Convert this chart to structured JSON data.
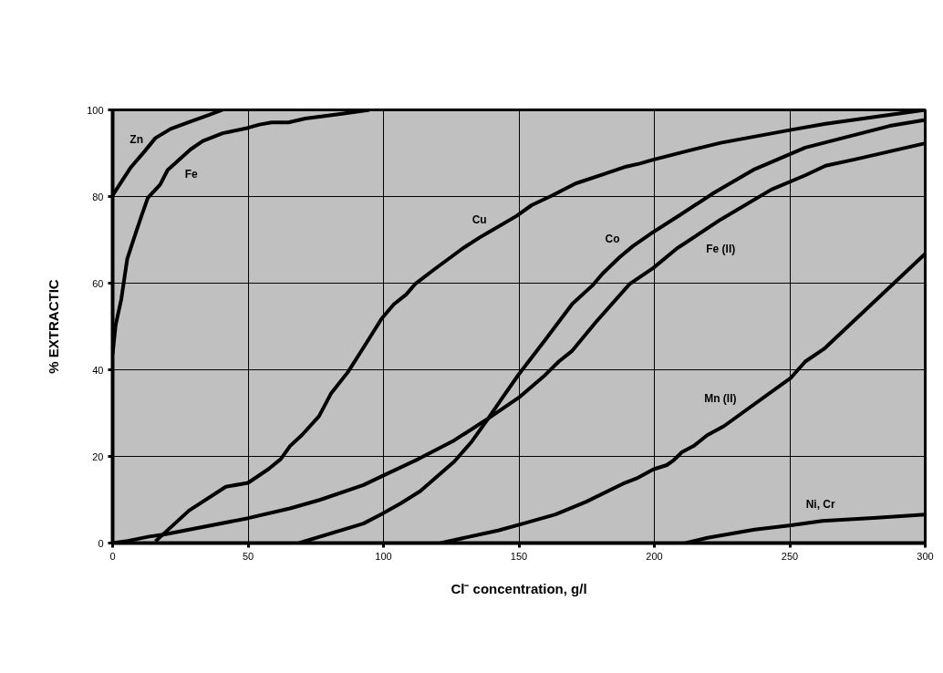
{
  "chart_data": {
    "type": "line",
    "xlabel": "Cl⁻ concentration, g/l",
    "ylabel": "% EXTRACTIC",
    "xlim": [
      0,
      300
    ],
    "ylim": [
      0,
      100
    ],
    "xticks": [
      0,
      50,
      100,
      150,
      200,
      250,
      300
    ],
    "yticks": [
      0,
      20,
      40,
      60,
      80,
      100
    ],
    "grid": true,
    "marker": "none",
    "line_style": "solid",
    "series": [
      {
        "name": "Zn",
        "color": "#000000",
        "x": [
          0,
          6.8,
          11.9,
          15.8,
          21.4,
          28.2,
          35,
          40.6
        ],
        "values": [
          80.3,
          86.8,
          90.5,
          93.5,
          95.6,
          97.2,
          98.7,
          100
        ]
      },
      {
        "name": "Fe",
        "color": "#000000",
        "x": [
          0,
          1.1,
          3.2,
          5.4,
          7.9,
          10.7,
          13,
          17.5,
          20.3,
          28.8,
          33.3,
          40.6,
          49.7,
          54.2,
          58.7,
          64.9,
          71.1,
          84.7,
          94.8
        ],
        "values": [
          43.6,
          50.3,
          56.3,
          65.6,
          70.4,
          75.6,
          79.7,
          82.7,
          86.1,
          90.9,
          92.8,
          94.6,
          95.8,
          96.6,
          97.1,
          97.1,
          98,
          99.1,
          100
        ]
      },
      {
        "name": "Cu",
        "color": "#000000",
        "x": [
          15.8,
          28.2,
          41.8,
          50,
          57.6,
          62.1,
          65.5,
          70,
          76.2,
          80.7,
          86.9,
          92.6,
          99.3,
          103.8,
          108.4,
          111.7,
          118.6,
          129.2,
          135.4,
          149.1,
          154.7,
          162.2,
          170.9,
          180.9,
          189.6,
          194.6,
          199.6,
          212.1,
          224.5,
          250.5,
          263.2,
          300
        ],
        "values": [
          0.4,
          7.5,
          13,
          13.9,
          17.1,
          19.4,
          22.4,
          25,
          29.3,
          34.6,
          39.5,
          45.1,
          51.8,
          55.1,
          57.4,
          59.8,
          63.1,
          68,
          70.5,
          75.5,
          78,
          80.2,
          83,
          85.1,
          86.9,
          87.6,
          88.5,
          90.5,
          92.4,
          95.4,
          96.8,
          100
        ]
      },
      {
        "name": "Co",
        "color": "#000000",
        "x": [
          68.8,
          92.6,
          99.3,
          106.5,
          113.6,
          126.1,
          132.3,
          138.5,
          143.5,
          150,
          159.7,
          169.7,
          177.2,
          180.9,
          187.2,
          192.2,
          199.6,
          209.6,
          222.1,
          237,
          255.7,
          286.9,
          300
        ],
        "values": [
          0,
          4.5,
          6.7,
          9.2,
          12,
          18.8,
          23.2,
          28.6,
          33.2,
          39,
          46.9,
          55.2,
          59.5,
          62.2,
          66,
          68.6,
          71.8,
          75.8,
          80.9,
          86.3,
          91.3,
          96.3,
          97.7
        ]
      },
      {
        "name": "Fe (II)",
        "color": "#000000",
        "x": [
          0,
          5.6,
          13.5,
          19.2,
          49.7,
          65.5,
          76.7,
          92.6,
          100,
          112.9,
          126.1,
          137.3,
          150,
          159.7,
          164.7,
          169.7,
          178.4,
          190.9,
          199.6,
          208.3,
          224.5,
          243.2,
          255.7,
          263.2,
          274.3,
          300
        ],
        "values": [
          0,
          0.5,
          1.5,
          2,
          5.7,
          8,
          10,
          13.4,
          15.6,
          19.4,
          23.7,
          28.2,
          33.6,
          38.8,
          41.9,
          44.4,
          51,
          59.8,
          63.5,
          68,
          74.7,
          81.6,
          84.9,
          87.1,
          88.6,
          92.3
        ]
      },
      {
        "name": "Mn (II)",
        "color": "#000000",
        "x": [
          121.1,
          142.3,
          152.2,
          163.5,
          174.7,
          188.4,
          193.4,
          199.6,
          204.6,
          207.1,
          210.2,
          214.5,
          219.5,
          225.7,
          250.5,
          255.7,
          262.6,
          300
        ],
        "values": [
          0,
          2.9,
          4.6,
          6.6,
          9.5,
          13.7,
          14.9,
          17,
          18,
          19.1,
          21,
          22.4,
          24.9,
          27,
          38.2,
          41.9,
          44.8,
          66.8
        ]
      },
      {
        "name": "Ni, Cr",
        "color": "#000000",
        "x": [
          211.5,
          219.6,
          237,
          250.5,
          262,
          280.8,
          300
        ],
        "values": [
          0,
          1.2,
          3.1,
          4.1,
          5.1,
          5.8,
          6.6
        ]
      }
    ]
  }
}
